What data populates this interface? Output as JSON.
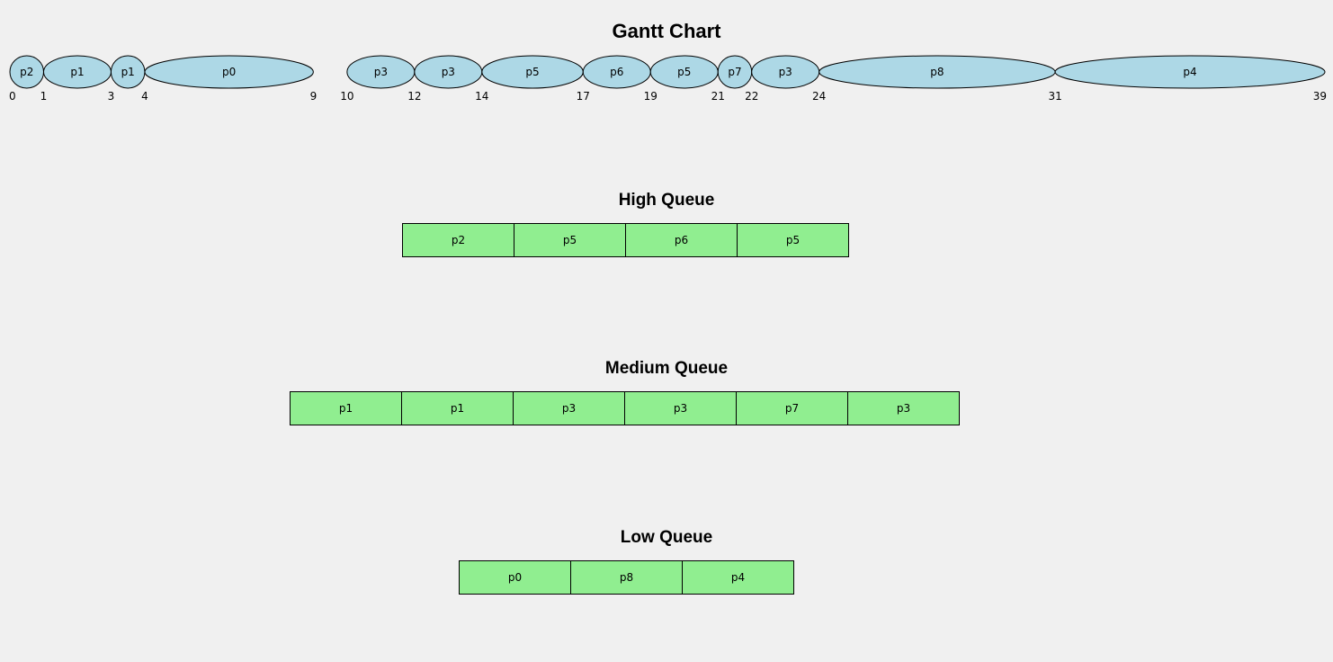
{
  "chart_data": [
    {
      "type": "gantt",
      "title": "Gantt Chart",
      "segments": [
        {
          "label": "p2",
          "start": 0,
          "end": 1
        },
        {
          "label": "p1",
          "start": 1,
          "end": 3
        },
        {
          "label": "p1",
          "start": 3,
          "end": 4
        },
        {
          "label": "p0",
          "start": 4,
          "end": 9
        },
        {
          "label": "p3",
          "start": 10,
          "end": 12
        },
        {
          "label": "p3",
          "start": 12,
          "end": 14
        },
        {
          "label": "p5",
          "start": 14,
          "end": 17
        },
        {
          "label": "p6",
          "start": 17,
          "end": 19
        },
        {
          "label": "p5",
          "start": 19,
          "end": 21
        },
        {
          "label": "p7",
          "start": 21,
          "end": 22
        },
        {
          "label": "p3",
          "start": 22,
          "end": 24
        },
        {
          "label": "p8",
          "start": 24,
          "end": 31
        },
        {
          "label": "p4",
          "start": 31,
          "end": 39
        }
      ],
      "ticks": [
        0,
        1,
        3,
        4,
        9,
        10,
        12,
        14,
        17,
        19,
        21,
        22,
        24,
        31,
        39
      ],
      "colors": {
        "segment_fill": "#add8e6",
        "segment_stroke": "#000000"
      }
    },
    {
      "type": "table",
      "title": "High Queue",
      "cells": [
        "p2",
        "p5",
        "p6",
        "p5"
      ],
      "colors": {
        "cell_fill": "#90ee90"
      }
    },
    {
      "type": "table",
      "title": "Medium Queue",
      "cells": [
        "p1",
        "p1",
        "p3",
        "p3",
        "p7",
        "p3"
      ],
      "colors": {
        "cell_fill": "#90ee90"
      }
    },
    {
      "type": "table",
      "title": "Low Queue",
      "cells": [
        "p0",
        "p8",
        "p4"
      ],
      "colors": {
        "cell_fill": "#90ee90"
      }
    }
  ]
}
